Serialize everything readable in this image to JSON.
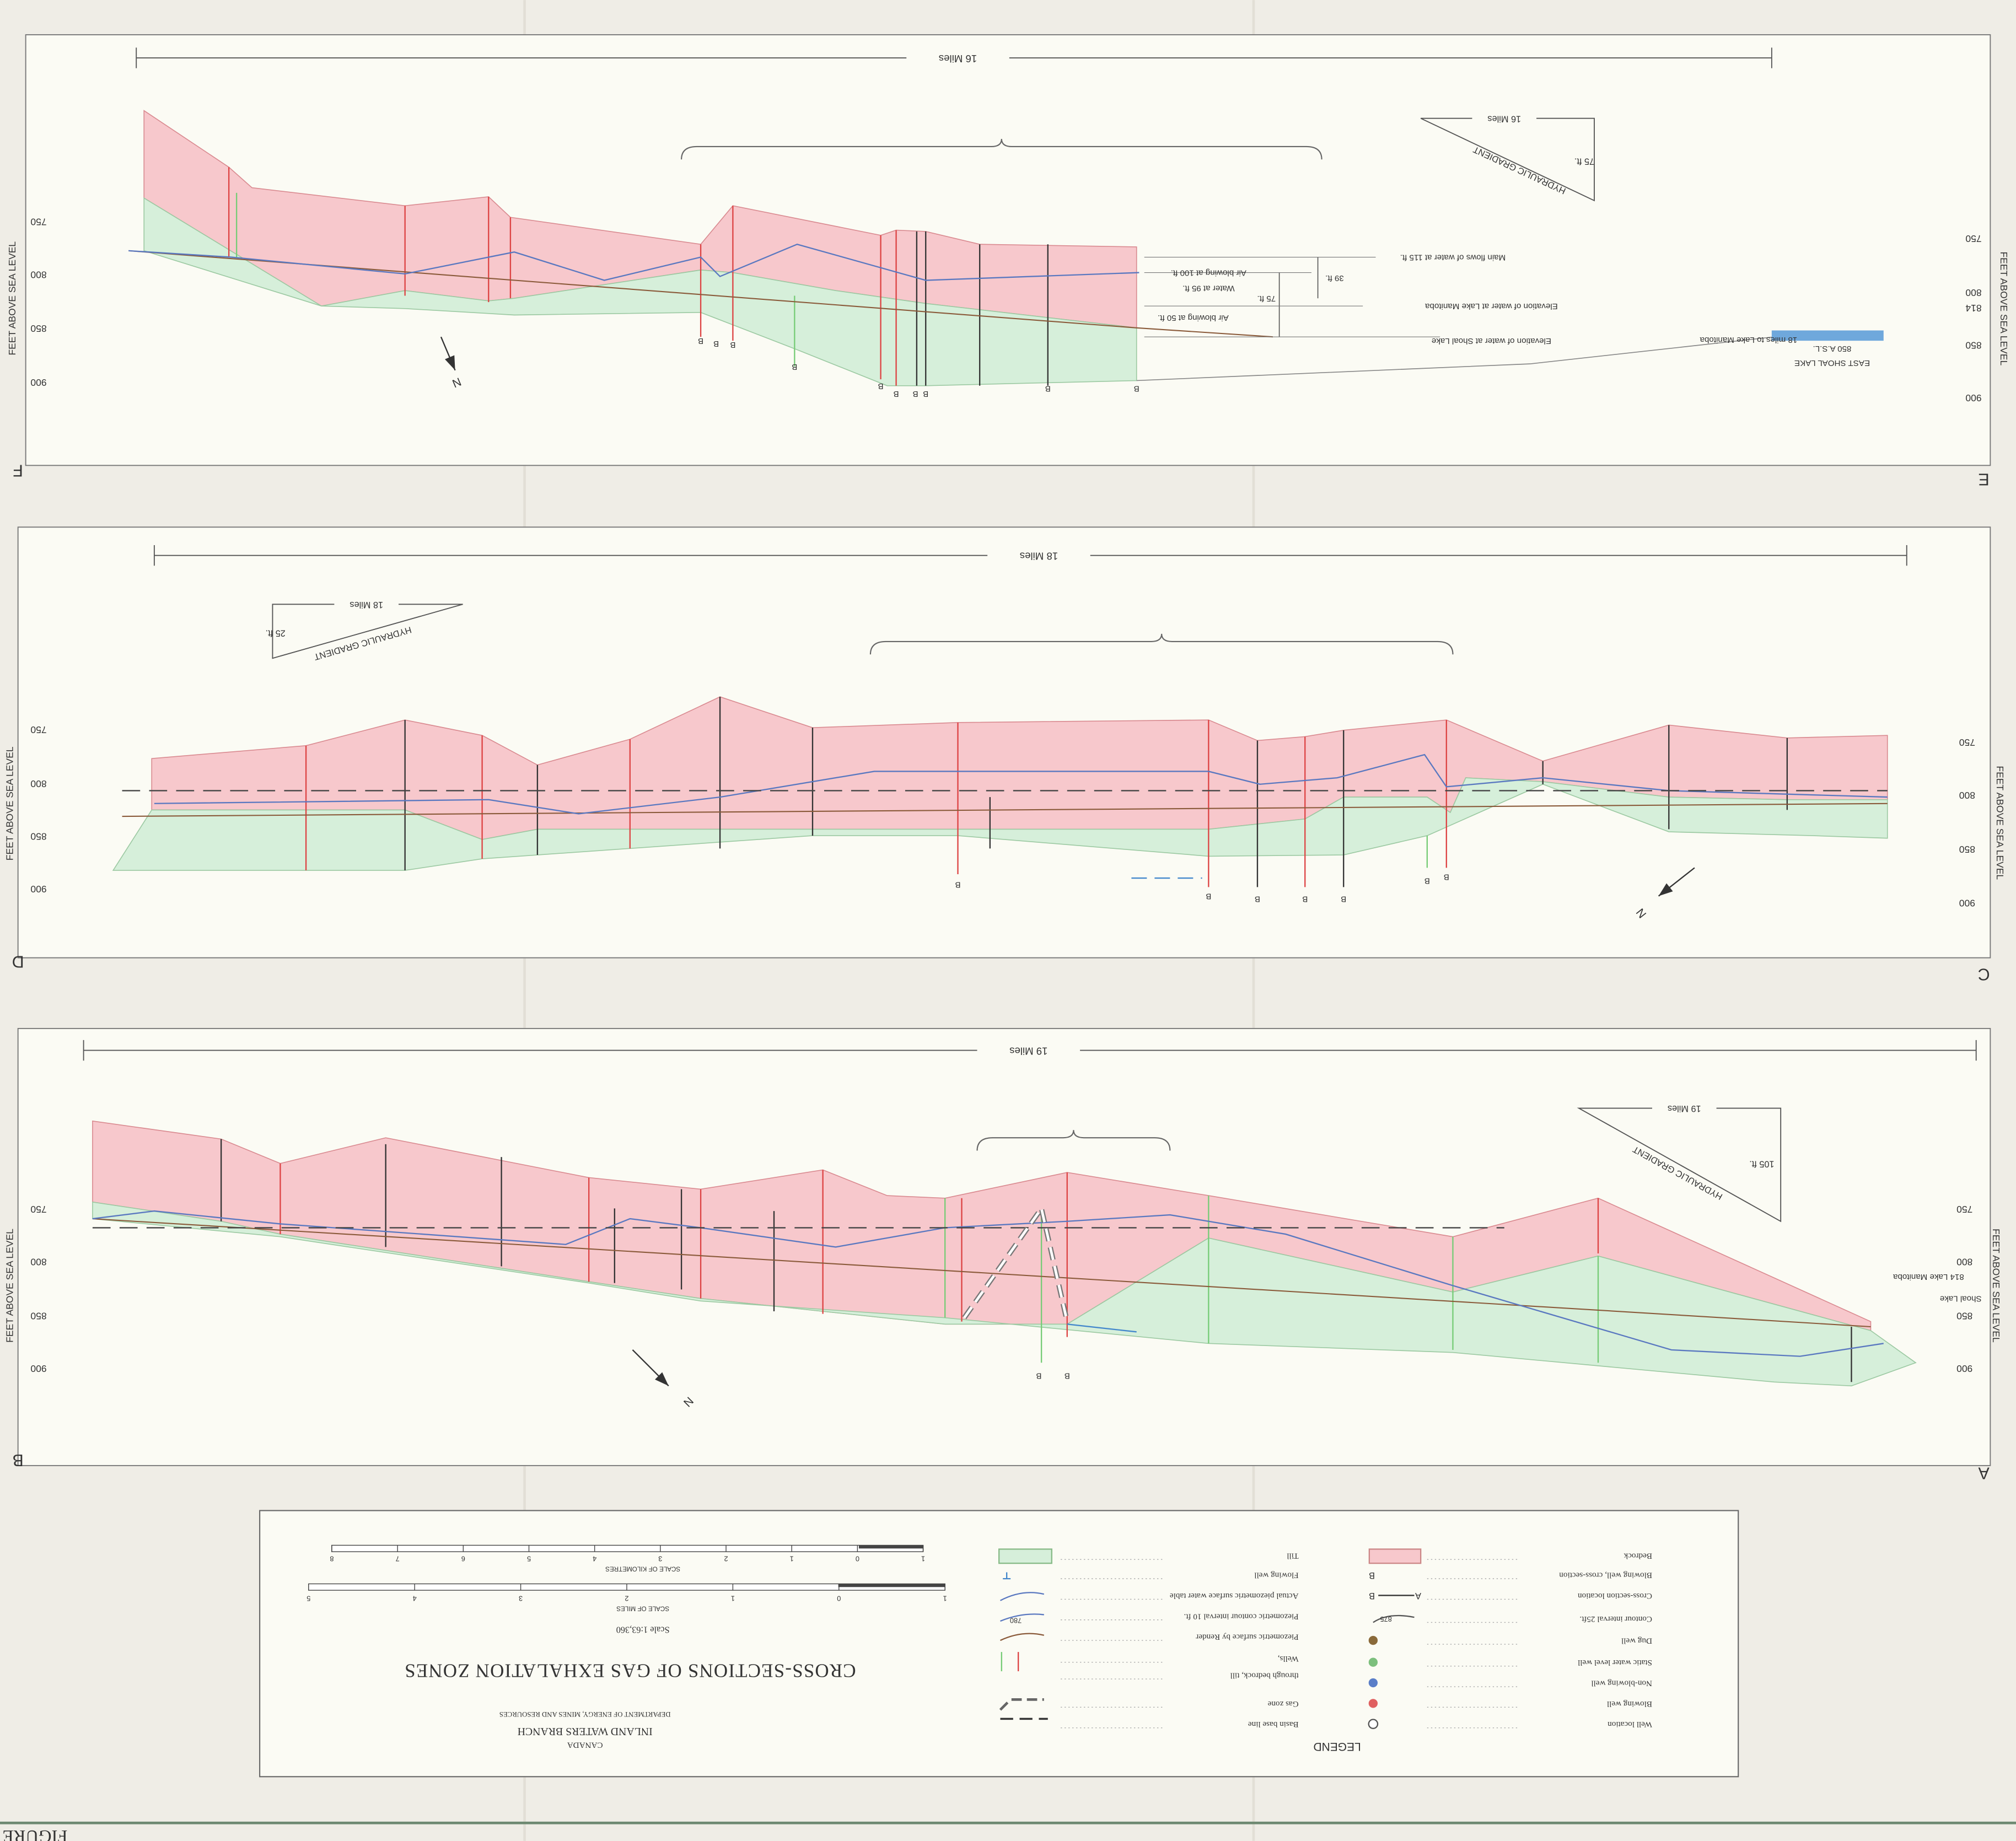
{
  "sections": [
    {
      "end_left": "F",
      "end_right": "E",
      "length": "16 Miles",
      "axis_title": "FEET ABOVE SEA LEVEL",
      "left_ticks": [
        "750",
        "800",
        "850",
        "900"
      ],
      "right_ticks": [
        "750",
        "800",
        "814",
        "850",
        "900"
      ],
      "gradient": {
        "title": "HYDRAULIC GRADIENT",
        "rise": "75 ft.",
        "run": "16 Miles"
      },
      "north": "N",
      "well_labels": [
        "B",
        "B",
        "B",
        "B",
        "B",
        "B",
        "B",
        "B",
        "B",
        "B"
      ],
      "notes": [
        "Main flows of water at 115 ft.",
        "Air blowing at 100 ft.",
        "Water at 95 ft.",
        "39 ft.",
        "75 ft.",
        "Elevation of water at Lake Manitoba",
        "Air blowing at 50 ft.",
        "Elevation of water at Shoal Lake",
        "18 miles to Lake Manitoba",
        "850 A.S.L.",
        "EAST SHOAL LAKE"
      ]
    },
    {
      "end_left": "D",
      "end_right": "C",
      "length": "18 Miles",
      "axis_title": "FEET ABOVE SEA LEVEL",
      "left_ticks": [
        "750",
        "800",
        "850",
        "900"
      ],
      "right_ticks": [
        "750",
        "800",
        "850",
        "900"
      ],
      "gradient": {
        "title": "HYDRAULIC GRADIENT",
        "rise": "25 ft.",
        "run": "18 Miles"
      },
      "north": "N",
      "well_labels": [
        "B",
        "B",
        "B",
        "B",
        "B",
        "B",
        "B"
      ]
    },
    {
      "end_left": "B",
      "end_right": "A",
      "length": "19 Miles",
      "axis_title": "FEET ABOVE SEA LEVEL",
      "left_ticks": [
        "750",
        "800",
        "850",
        "900"
      ],
      "right_ticks": [
        "750",
        "800",
        "850",
        "900"
      ],
      "gradient": {
        "title": "HYDRAULIC GRADIENT",
        "rise": "105 ft.",
        "run": "19 Miles"
      },
      "north": "N",
      "well_labels": [
        "B",
        "B"
      ],
      "notes": [
        "814 Lake Manitoba",
        "Shoal Lake"
      ]
    }
  ],
  "legend": {
    "title": "LEGEND",
    "column_1": [
      {
        "label": "Bedrock"
      },
      {
        "label": "Blowing well, cross-section",
        "symbol": "B"
      },
      {
        "label": "Cross-section location",
        "symbols": [
          "A",
          "B"
        ]
      },
      {
        "label": "Contour interval 25ft.",
        "symbol": "875"
      },
      {
        "label": "Dug well"
      },
      {
        "label": "Static water level well"
      },
      {
        "label": "Non-blowing well"
      },
      {
        "label": "Blowing well"
      },
      {
        "label": "Well location"
      }
    ],
    "column_2": [
      {
        "label": "Till"
      },
      {
        "label": "Flowing well"
      },
      {
        "label": "Actual piezometric surface water table"
      },
      {
        "label": "Piezometric contour interval 10 ft.",
        "symbol": "780"
      },
      {
        "label": "Piezometric surface by Render"
      },
      {
        "label": "Wells,"
      },
      {
        "label": "through bedrock, till"
      },
      {
        "label": "Gas zone"
      },
      {
        "label": "Basin base line"
      }
    ]
  },
  "title_block": {
    "country": "CANADA",
    "branch": "INLAND WATERS BRANCH",
    "department": "DEPARTMENT OF ENERGY, MINES AND RESOURCES",
    "title": "CROSS-SECTIONS OF GAS EXHALATION ZONES",
    "scale": "Scale 1:63,360",
    "miles_title": "SCALE OF MILES",
    "miles_ticks": [
      "1",
      "0",
      "1",
      "2",
      "3",
      "4",
      "5"
    ],
    "km_title": "SCALE OF KILOMETRES",
    "km_ticks": [
      "1",
      "0",
      "1",
      "2",
      "3",
      "4",
      "5",
      "6",
      "7",
      "8"
    ]
  },
  "figure": "FIGURE"
}
